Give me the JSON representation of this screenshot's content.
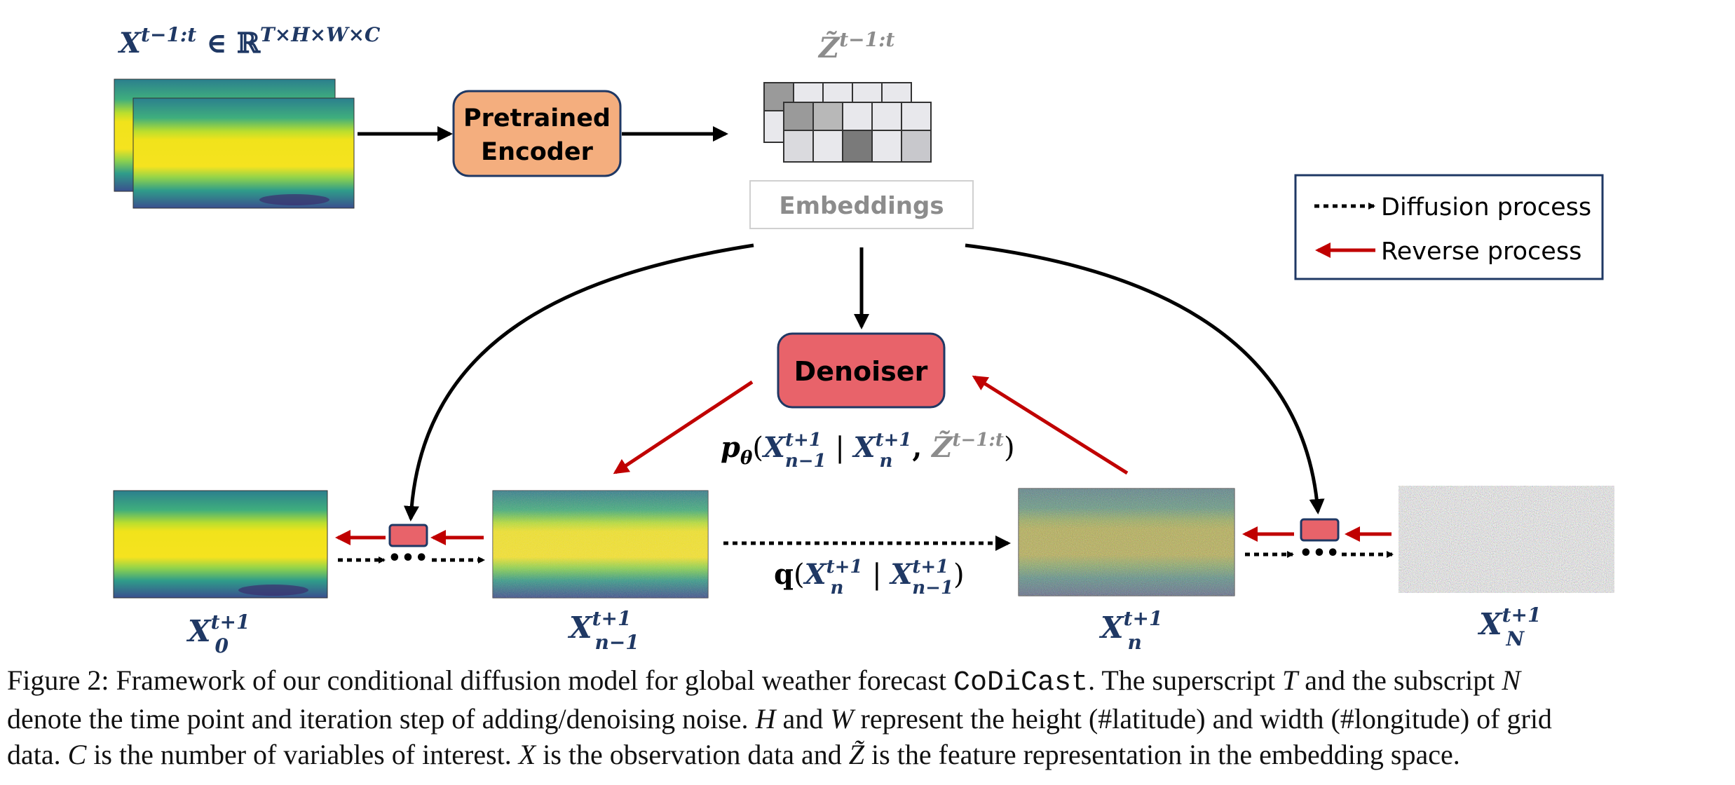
{
  "diagram": {
    "input_label_base": "X",
    "input_label_sup": "t−1:t",
    "input_label_rest": " ∈ ℝ",
    "input_label_rest_sup": "T×H×W×C",
    "encoder_line1": "Pretrained",
    "encoder_line2": "Encoder",
    "z_label_base": "Z̃",
    "z_label_sup": "t−1:t",
    "embeddings_label": "Embeddings",
    "denoiser_label": "Denoiser",
    "legend": {
      "diffusion": "Diffusion process",
      "reverse": "Reverse process"
    },
    "p_theta": {
      "p": "p",
      "theta": "θ",
      "open": "(",
      "x1": "X",
      "x1_sup": "t+1",
      "x1_sub": "n−1",
      "bar": " | ",
      "x2": "X",
      "x2_sup": "t+1",
      "x2_sub": "n",
      "comma": ", ",
      "z": "Z̃",
      "z_sup": "t−1:t",
      "close": ")"
    },
    "q": {
      "q": "q",
      "open": "(",
      "x1": "X",
      "x1_sup": "t+1",
      "x1_sub": "n",
      "bar": " | ",
      "x2": "X",
      "x2_sup": "t+1",
      "x2_sub": "n−1",
      "close": ")"
    },
    "states": [
      {
        "base": "X",
        "sup": "t+1",
        "sub": "0"
      },
      {
        "base": "X",
        "sup": "t+1",
        "sub": "n−1"
      },
      {
        "base": "X",
        "sup": "t+1",
        "sub": "n"
      },
      {
        "base": "X",
        "sup": "t+1",
        "sub": "N"
      }
    ],
    "colors": {
      "encoder_fill": "#f4ae7e",
      "denoiser_fill": "#e8636a",
      "reverse_arrow": "#c00000",
      "navy": "#1f3864",
      "embeddings_text": "#8c8c8c"
    }
  },
  "caption": {
    "line1_a": "Figure 2: Framework of our conditional diffusion model for global weather forecast ",
    "line1_code": "CoDiCast",
    "line1_b": ". The superscript ",
    "line1_T": "T",
    "line1_c": " and the subscript ",
    "line1_N": "N",
    "line2_a": "denote the time point and iteration step of adding/denoising noise. ",
    "line2_H": "H",
    "line2_b": " and ",
    "line2_W": "W",
    "line2_c": " represent the height (#latitude) and width (#longitude) of grid",
    "line3_a": "data. ",
    "line3_C": "C",
    "line3_b": " is the number of variables of interest. ",
    "line3_X": "X",
    "line3_c": " is the observation data and ",
    "line3_Z": "Z̃",
    "line3_d": " is the feature representation in the embedding space."
  }
}
